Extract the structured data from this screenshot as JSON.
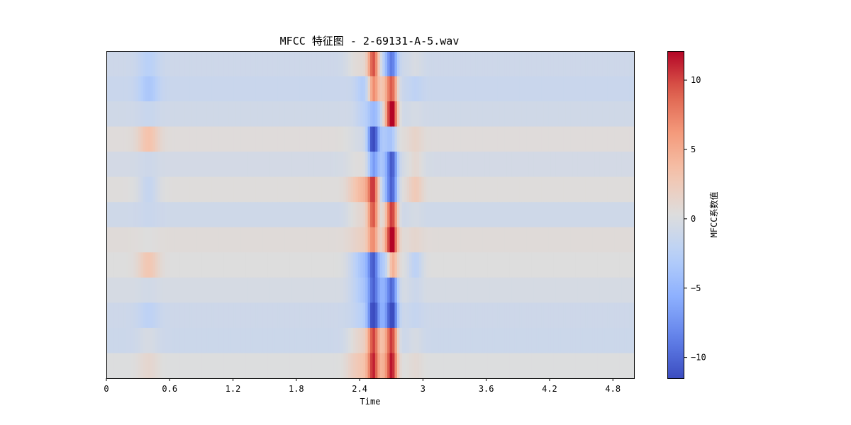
{
  "chart_data": {
    "type": "heatmap",
    "title": "MFCC 特征图 - 2-69131-A-5.wav",
    "xlabel": "Time",
    "ylabel": "",
    "xlim": [
      0,
      5.0
    ],
    "x_ticks": [
      0,
      0.6,
      1.2,
      1.8,
      2.4,
      3,
      3.6,
      4.2,
      4.8
    ],
    "x_tick_labels": [
      "0",
      "0.6",
      "1.2",
      "1.8",
      "2.4",
      "3",
      "3.6",
      "4.2",
      "4.8"
    ],
    "n_coefficients": 13,
    "n_frames": 216,
    "colormap": "coolwarm",
    "vmin": -11.5,
    "vmax": 12.1,
    "colorbar": {
      "label": "MFCC系数值",
      "ticks": [
        10,
        5,
        0,
        -5,
        -10
      ],
      "tick_labels": [
        "10",
        "5",
        "0",
        "−5",
        "−10"
      ]
    },
    "coefficient_baseline": [
      -1.0,
      -1.3,
      -0.8,
      0.5,
      -0.5,
      0.4,
      -0.9,
      0.6,
      0.3,
      -0.3,
      -1.0,
      -1.1,
      0.2
    ],
    "events": [
      {
        "time": 0.4,
        "width": 0.07,
        "values": [
          -1.5,
          -2.2,
          -0.6,
          2.8,
          -0.5,
          -2.0,
          -0.4,
          -0.3,
          2.6,
          -0.4,
          -1.2,
          0.8,
          1.0
        ]
      },
      {
        "time": 2.34,
        "width": 0.06,
        "values": [
          1.0,
          0.3,
          0.2,
          -0.4,
          0.5,
          1.2,
          0.8,
          0.4,
          -1.0,
          -0.6,
          -0.2,
          1.0,
          1.2
        ]
      },
      {
        "time": 2.45,
        "width": 0.07,
        "values": [
          1.5,
          -2.0,
          -1.5,
          -1.0,
          0.8,
          3.5,
          1.8,
          1.2,
          -4.0,
          -3.0,
          -1.5,
          2.5,
          2.5
        ]
      },
      {
        "time": 2.53,
        "width": 0.035,
        "values": [
          9.5,
          8.0,
          -2.0,
          -11.5,
          -6.0,
          9.0,
          10.0,
          6.5,
          -8.0,
          -7.0,
          -9.5,
          9.0,
          9.0
        ]
      },
      {
        "time": 2.6,
        "width": 0.06,
        "values": [
          1.0,
          2.0,
          -2.5,
          -2.0,
          -1.5,
          -1.0,
          -1.0,
          -1.5,
          -2.0,
          -3.0,
          -2.5,
          2.0,
          1.5
        ]
      },
      {
        "time": 2.66,
        "width": 0.045,
        "values": [
          -3.0,
          3.0,
          5.0,
          -2.0,
          -2.0,
          -3.0,
          3.0,
          4.0,
          -2.0,
          -2.0,
          -2.0,
          3.0,
          3.0
        ]
      },
      {
        "time": 2.71,
        "width": 0.035,
        "values": [
          -6.5,
          8.5,
          12.1,
          -2.5,
          -9.0,
          -9.0,
          10.0,
          10.5,
          5.5,
          -8.0,
          -10.0,
          9.5,
          9.5
        ]
      },
      {
        "time": 2.93,
        "width": 0.05,
        "values": [
          0.8,
          -0.8,
          0.4,
          1.0,
          1.5,
          2.2,
          0.5,
          0.6,
          -2.5,
          -0.8,
          -0.6,
          0.8,
          0.7
        ]
      }
    ]
  }
}
